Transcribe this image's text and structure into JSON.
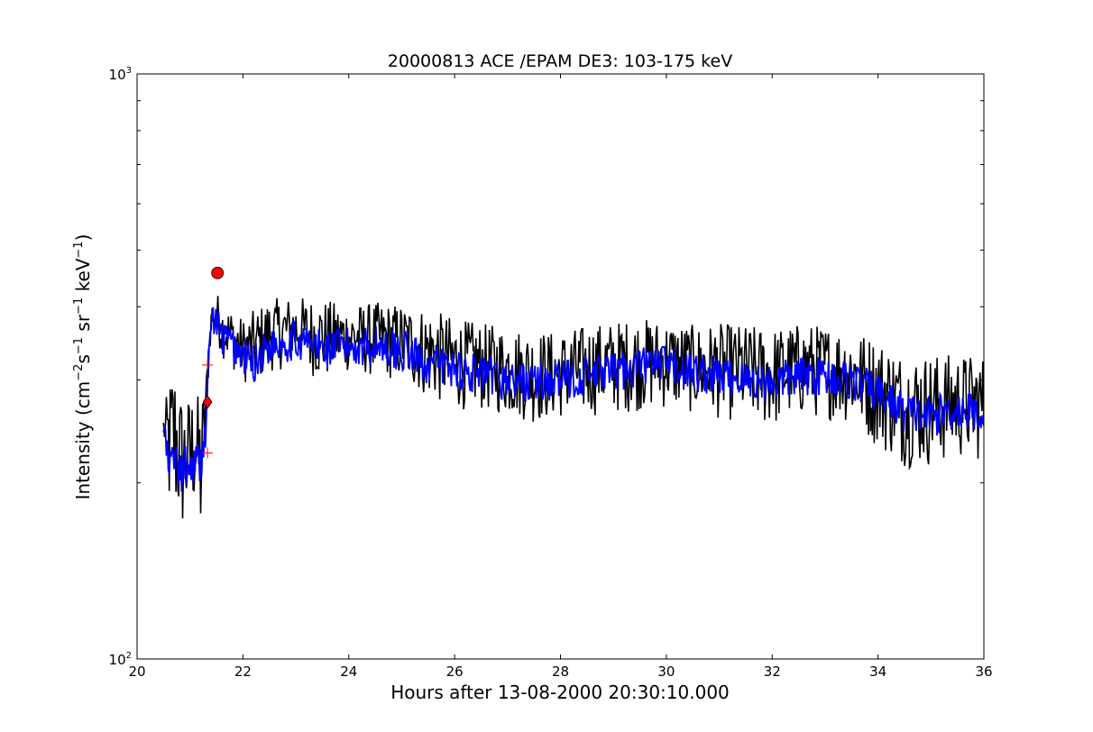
{
  "chart_data": {
    "type": "line",
    "title": "20000813 ACE /EPAM DE3: 103-175 keV",
    "xlabel": "Hours after 13-08-2000 20:30:10.000",
    "ylabel": {
      "main": "Intensity (cm",
      "sup1": "−2",
      "s": "s",
      "sup2": "−1",
      "sr": " sr",
      "sup3": "−1",
      "kev": " keV",
      "sup4": "−1",
      "close": ")"
    },
    "xlim": [
      20,
      36
    ],
    "ylim": [
      100,
      1000
    ],
    "yscale": "log",
    "grid": false,
    "x_ticks": [
      "20",
      "22",
      "24",
      "26",
      "28",
      "30",
      "32",
      "34",
      "36"
    ],
    "y_ticks": [
      {
        "base": "10",
        "exp": "2"
      },
      {
        "base": "10",
        "exp": "3"
      }
    ],
    "raw_envelope": [
      [
        20.5,
        240,
        260
      ],
      [
        20.6,
        175,
        295
      ],
      [
        20.7,
        170,
        320
      ],
      [
        20.8,
        165,
        285
      ],
      [
        20.9,
        162,
        275
      ],
      [
        21.0,
        175,
        280
      ],
      [
        21.1,
        180,
        290
      ],
      [
        21.2,
        150,
        272
      ],
      [
        21.3,
        245,
        300
      ],
      [
        21.4,
        360,
        400
      ],
      [
        21.5,
        355,
        425
      ],
      [
        21.6,
        330,
        405
      ],
      [
        21.8,
        315,
        395
      ],
      [
        22.0,
        300,
        380
      ],
      [
        22.2,
        292,
        392
      ],
      [
        22.5,
        312,
        410
      ],
      [
        23.0,
        318,
        415
      ],
      [
        23.5,
        300,
        410
      ],
      [
        24.0,
        312,
        400
      ],
      [
        24.5,
        305,
        405
      ],
      [
        25.0,
        300,
        402
      ],
      [
        25.5,
        280,
        395
      ],
      [
        26.0,
        270,
        380
      ],
      [
        26.5,
        268,
        372
      ],
      [
        27.0,
        262,
        368
      ],
      [
        27.5,
        255,
        362
      ],
      [
        28.0,
        260,
        360
      ],
      [
        28.5,
        262,
        370
      ],
      [
        29.0,
        265,
        375
      ],
      [
        29.5,
        268,
        380
      ],
      [
        30.0,
        270,
        378
      ],
      [
        30.5,
        265,
        370
      ],
      [
        31.0,
        260,
        372
      ],
      [
        31.5,
        255,
        370
      ],
      [
        32.0,
        250,
        365
      ],
      [
        32.5,
        262,
        372
      ],
      [
        33.0,
        260,
        370
      ],
      [
        33.5,
        255,
        365
      ],
      [
        34.0,
        232,
        350
      ],
      [
        34.5,
        215,
        330
      ],
      [
        35.0,
        215,
        330
      ],
      [
        35.5,
        222,
        330
      ],
      [
        36.0,
        220,
        328
      ]
    ],
    "series": [
      {
        "line_color": "#0000ff",
        "points": [
          [
            20.5,
            250
          ],
          [
            20.6,
            210
          ],
          [
            20.7,
            225
          ],
          [
            20.8,
            205
          ],
          [
            20.9,
            215
          ],
          [
            21.0,
            210
          ],
          [
            21.1,
            220
          ],
          [
            21.2,
            215
          ],
          [
            21.3,
            250
          ],
          [
            21.4,
            385
          ],
          [
            21.5,
            375
          ],
          [
            21.6,
            355
          ],
          [
            21.8,
            345
          ],
          [
            22.0,
            330
          ],
          [
            22.2,
            320
          ],
          [
            22.5,
            345
          ],
          [
            23.0,
            352
          ],
          [
            23.5,
            340
          ],
          [
            24.0,
            342
          ],
          [
            24.5,
            345
          ],
          [
            25.0,
            338
          ],
          [
            25.5,
            320
          ],
          [
            26.0,
            315
          ],
          [
            26.5,
            305
          ],
          [
            27.0,
            300
          ],
          [
            27.5,
            298
          ],
          [
            28.0,
            300
          ],
          [
            28.5,
            305
          ],
          [
            29.0,
            310
          ],
          [
            29.5,
            318
          ],
          [
            30.0,
            318
          ],
          [
            30.5,
            310
          ],
          [
            31.0,
            305
          ],
          [
            31.5,
            300
          ],
          [
            32.0,
            298
          ],
          [
            32.5,
            305
          ],
          [
            33.0,
            305
          ],
          [
            33.5,
            300
          ],
          [
            34.0,
            285
          ],
          [
            34.5,
            265
          ],
          [
            35.0,
            260
          ],
          [
            35.5,
            268
          ],
          [
            36.0,
            262
          ]
        ]
      }
    ],
    "markers": [
      {
        "shape": "circle",
        "x": 21.52,
        "y": 457,
        "color": "#ff0000"
      },
      {
        "shape": "diamond",
        "x": 21.33,
        "y": 275,
        "color": "#ff0000"
      },
      {
        "shape": "plus",
        "x": 21.33,
        "y": 318,
        "color": "#ff0000"
      },
      {
        "shape": "plus",
        "x": 21.33,
        "y": 225,
        "color": "#ff0000"
      }
    ],
    "raw_color": "#000000",
    "smooth_color": "#0000ff"
  }
}
